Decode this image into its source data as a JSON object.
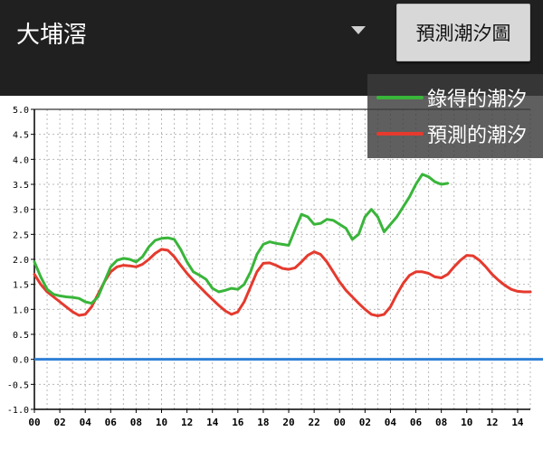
{
  "header": {
    "station": "大埔滘",
    "predict_button": "預測潮汐圖",
    "dropdown_icon": "chevron-down-icon"
  },
  "legend": {
    "items": [
      {
        "label": "錄得的潮汐",
        "color": "#39b53a"
      },
      {
        "label": "預測的潮汐",
        "color": "#e53a2e"
      }
    ]
  },
  "chart_data": {
    "type": "line",
    "ylim": [
      -1.0,
      5.0
    ],
    "ytick_labels": [
      "-1.0",
      "-0.5",
      "0.0",
      "0.5",
      "1.0",
      "1.5",
      "2.0",
      "2.5",
      "3.0",
      "3.5",
      "4.0",
      "4.5",
      "5.0"
    ],
    "x_range_hours": [
      0,
      39
    ],
    "xtick_labels": [
      "00",
      "02",
      "04",
      "06",
      "08",
      "10",
      "12",
      "14",
      "16",
      "18",
      "20",
      "22",
      "00",
      "02",
      "04",
      "06",
      "08",
      "10",
      "12",
      "14"
    ],
    "grid": true,
    "zero_line_color": "#2f7fd6",
    "series": [
      {
        "name": "錄得的潮汐",
        "color": "#39b53a",
        "x": [
          0,
          0.5,
          1,
          1.5,
          2,
          2.5,
          3,
          3.5,
          4,
          4.5,
          5,
          5.5,
          6,
          6.5,
          7,
          7.5,
          8,
          8.5,
          9,
          9.5,
          10,
          10.5,
          11,
          11.5,
          12,
          12.5,
          13,
          13.5,
          14,
          14.5,
          15,
          15.5,
          16,
          16.5,
          17,
          17.5,
          18,
          18.5,
          19,
          19.5,
          20,
          20.5,
          21,
          21.5,
          22,
          22.5,
          23,
          23.5,
          24,
          24.5,
          25,
          25.5,
          26,
          26.5,
          27,
          27.5,
          28,
          28.5,
          29,
          29.5,
          30,
          30.5,
          31,
          31.5,
          32,
          32.5,
          33,
          33.5,
          34,
          34.5,
          35
        ],
        "y": [
          1.95,
          1.65,
          1.4,
          1.3,
          1.27,
          1.25,
          1.24,
          1.22,
          1.15,
          1.12,
          1.25,
          1.55,
          1.85,
          1.98,
          2.02,
          2.0,
          1.95,
          2.05,
          2.25,
          2.38,
          2.42,
          2.43,
          2.4,
          2.2,
          1.95,
          1.75,
          1.68,
          1.6,
          1.42,
          1.35,
          1.38,
          1.42,
          1.4,
          1.5,
          1.75,
          2.1,
          2.3,
          2.35,
          2.32,
          2.3,
          2.28,
          2.6,
          2.9,
          2.85,
          2.7,
          2.72,
          2.8,
          2.78,
          2.7,
          2.62,
          2.4,
          2.5,
          2.85,
          3.0,
          2.85,
          2.55,
          2.7,
          2.85,
          3.05,
          3.25,
          3.5,
          3.7,
          3.65,
          3.55,
          3.5,
          3.52,
          null,
          null,
          null,
          null,
          null
        ]
      },
      {
        "name": "預測的潮汐",
        "color": "#e53a2e",
        "x": [
          0,
          0.5,
          1,
          1.5,
          2,
          2.5,
          3,
          3.5,
          4,
          4.5,
          5,
          5.5,
          6,
          6.5,
          7,
          7.5,
          8,
          8.5,
          9,
          9.5,
          10,
          10.5,
          11,
          11.5,
          12,
          12.5,
          13,
          13.5,
          14,
          14.5,
          15,
          15.5,
          16,
          16.5,
          17,
          17.5,
          18,
          18.5,
          19,
          19.5,
          20,
          20.5,
          21,
          21.5,
          22,
          22.5,
          23,
          23.5,
          24,
          24.5,
          25,
          25.5,
          26,
          26.5,
          27,
          27.5,
          28,
          28.5,
          29,
          29.5,
          30,
          30.5,
          31,
          31.5,
          32,
          32.5,
          33,
          33.5,
          34,
          34.5,
          35,
          35.5,
          36,
          36.5,
          37,
          37.5,
          38,
          38.5,
          39
        ],
        "y": [
          1.7,
          1.5,
          1.35,
          1.25,
          1.15,
          1.05,
          0.95,
          0.88,
          0.9,
          1.05,
          1.3,
          1.55,
          1.75,
          1.85,
          1.88,
          1.87,
          1.85,
          1.9,
          2.0,
          2.12,
          2.2,
          2.18,
          2.05,
          1.88,
          1.72,
          1.58,
          1.45,
          1.32,
          1.2,
          1.08,
          0.97,
          0.9,
          0.95,
          1.15,
          1.45,
          1.75,
          1.92,
          1.93,
          1.88,
          1.82,
          1.8,
          1.83,
          1.95,
          2.08,
          2.15,
          2.1,
          1.95,
          1.75,
          1.55,
          1.38,
          1.25,
          1.12,
          1.0,
          0.9,
          0.87,
          0.9,
          1.05,
          1.3,
          1.52,
          1.68,
          1.75,
          1.75,
          1.72,
          1.65,
          1.63,
          1.7,
          1.85,
          1.98,
          2.08,
          2.07,
          1.98,
          1.85,
          1.7,
          1.58,
          1.48,
          1.4,
          1.36,
          1.35,
          1.35
        ]
      }
    ]
  }
}
